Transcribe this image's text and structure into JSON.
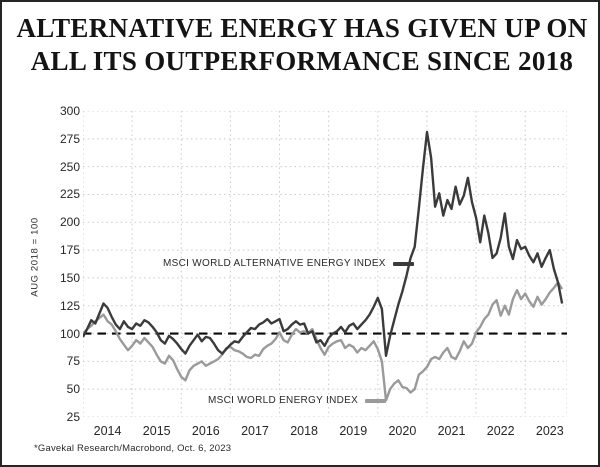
{
  "title": {
    "line1": "ALTERNATIVE ENERGY HAS GIVEN UP ON",
    "line2": "ALL ITS OUTPERFORMANCE SINCE 2018"
  },
  "footer": "*Gavekal Research/Macrobond, Oct. 6, 2023",
  "colors": {
    "alt_line": "#3b3b3b",
    "energy_line": "#9a9a9a",
    "reference_dash": "#0a0a0a",
    "grid": "#c9c9c9",
    "text": "#272727",
    "frame_border": "#252525"
  },
  "chart_data": {
    "type": "line",
    "title": "ALTERNATIVE ENERGY HAS GIVEN UP ON ALL ITS OUTPERFORMANCE SINCE 2018",
    "xlabel": "",
    "ylabel": "AUG 2018 = 100",
    "ylim": [
      25,
      300
    ],
    "xlim": [
      2014,
      2023.85
    ],
    "yticks": [
      300,
      275,
      250,
      225,
      200,
      175,
      150,
      125,
      100,
      75,
      50,
      25
    ],
    "year_labels": [
      2014,
      2015,
      2016,
      2017,
      2018,
      2019,
      2020,
      2021,
      2022,
      2023
    ],
    "grid": "dotted",
    "reference_line": {
      "value": 100,
      "style": "dashed"
    },
    "legend_position": "inside",
    "x_start": 2014.0,
    "x_step": 0.0833333,
    "series": [
      {
        "name": "MSCI WORLD ALTERNATIVE ENERGY INDEX",
        "color": "#3b3b3b",
        "values": [
          97,
          104,
          112,
          109,
          118,
          127,
          123,
          115,
          108,
          104,
          111,
          106,
          104,
          109,
          107,
          112,
          110,
          106,
          101,
          94,
          91,
          98,
          95,
          91,
          86,
          82,
          89,
          94,
          99,
          93,
          97,
          96,
          91,
          85,
          82,
          86,
          90,
          93,
          92,
          97,
          101,
          105,
          104,
          108,
          110,
          113,
          109,
          111,
          113,
          102,
          104,
          108,
          111,
          108,
          109,
          100,
          102,
          92,
          94,
          89,
          96,
          100,
          102,
          106,
          101,
          107,
          109,
          104,
          108,
          112,
          117,
          124,
          132,
          122,
          80,
          98,
          112,
          126,
          138,
          152,
          168,
          178,
          212,
          248,
          281,
          258,
          214,
          226,
          206,
          220,
          212,
          232,
          216,
          224,
          240,
          218,
          204,
          182,
          206,
          190,
          168,
          172,
          186,
          208,
          178,
          167,
          184,
          176,
          178,
          170,
          164,
          172,
          160,
          168,
          175,
          158,
          146,
          127
        ]
      },
      {
        "name": "MSCI WORLD ENERGY INDEX",
        "color": "#9a9a9a",
        "values": [
          100,
          104,
          107,
          111,
          114,
          117,
          111,
          108,
          102,
          95,
          90,
          85,
          89,
          94,
          91,
          96,
          92,
          88,
          81,
          75,
          73,
          80,
          76,
          68,
          61,
          58,
          67,
          71,
          73,
          75,
          71,
          73,
          75,
          77,
          81,
          87,
          88,
          85,
          84,
          82,
          79,
          78,
          81,
          80,
          86,
          89,
          91,
          95,
          101,
          94,
          92,
          99,
          104,
          101,
          102,
          100,
          104,
          95,
          87,
          81,
          88,
          91,
          93,
          94,
          87,
          90,
          88,
          83,
          87,
          85,
          89,
          93,
          86,
          75,
          40,
          50,
          55,
          58,
          52,
          51,
          47,
          50,
          63,
          66,
          70,
          77,
          79,
          77,
          83,
          87,
          79,
          77,
          84,
          93,
          87,
          91,
          101,
          106,
          113,
          117,
          126,
          130,
          116,
          125,
          117,
          131,
          139,
          131,
          136,
          129,
          124,
          133,
          126,
          131,
          137,
          141,
          146,
          140
        ]
      }
    ]
  }
}
